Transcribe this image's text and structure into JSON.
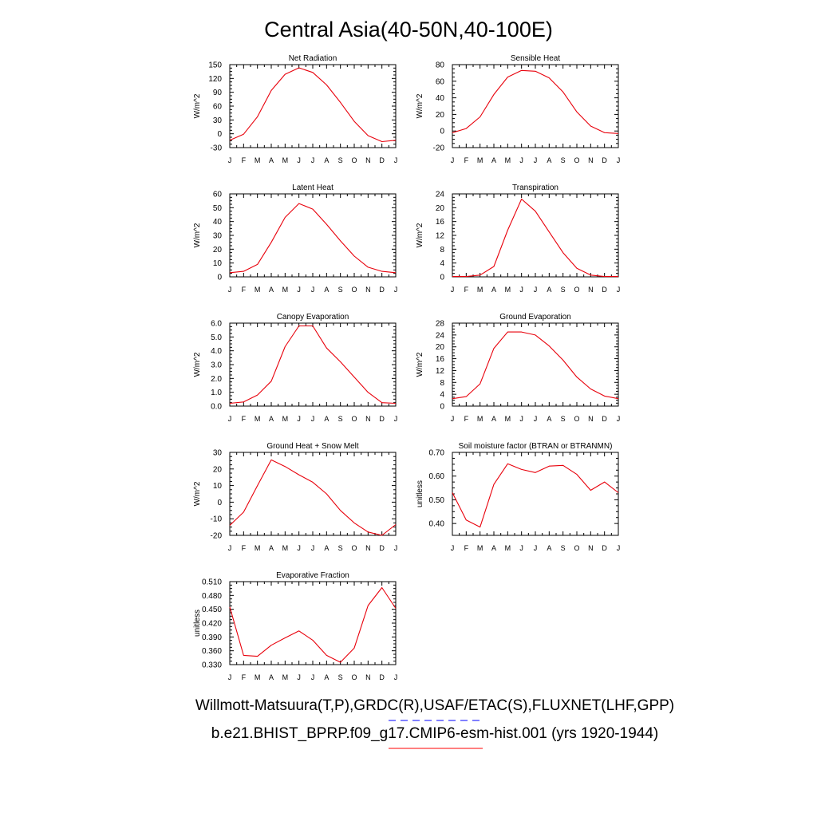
{
  "title": "Central Asia(40-50N,40-100E)",
  "footer": {
    "line1": "Willmott-Matsuura(T,P),GRDC(R),USAF/ETAC(S),FLUXNET(LHF,GPP)",
    "line2": "b.e21.BHIST_BPRP.f09_g17.CMIP6-esm-hist.001 (yrs 1920-1944)",
    "line1_key": {
      "color": "#0000ff",
      "style": "dashed"
    },
    "line2_key": {
      "color": "#ff0000",
      "style": "solid"
    }
  },
  "months": [
    "J",
    "F",
    "M",
    "A",
    "M",
    "J",
    "J",
    "A",
    "S",
    "O",
    "N",
    "D",
    "J"
  ],
  "chart_data": [
    {
      "type": "line",
      "title": "Net Radiation",
      "ylabel": "W/m^2",
      "ylim": [
        -30,
        150
      ],
      "yticks": [
        "-30",
        "0",
        "30",
        "60",
        "90",
        "120",
        "150"
      ],
      "ytick_values": [
        -30,
        0,
        30,
        60,
        90,
        120,
        150
      ],
      "x": [
        "J",
        "F",
        "M",
        "A",
        "M",
        "J",
        "J",
        "A",
        "S",
        "O",
        "N",
        "D",
        "J"
      ],
      "series": [
        {
          "color": "#e8000b",
          "values": [
            -14,
            -1,
            37,
            94,
            129,
            143,
            133,
            106,
            68,
            27,
            -4,
            -17,
            -14
          ]
        }
      ]
    },
    {
      "type": "line",
      "title": "Sensible Heat",
      "ylabel": "W/m^2",
      "ylim": [
        -20,
        80
      ],
      "yticks": [
        "-20",
        "0",
        "20",
        "40",
        "60",
        "80"
      ],
      "ytick_values": [
        -20,
        0,
        20,
        40,
        60,
        80
      ],
      "x": [
        "J",
        "F",
        "M",
        "A",
        "M",
        "J",
        "J",
        "A",
        "S",
        "O",
        "N",
        "D",
        "J"
      ],
      "series": [
        {
          "color": "#e8000b",
          "values": [
            -2,
            3,
            17,
            44,
            65,
            73,
            72,
            64,
            47,
            23,
            6,
            -2,
            -3
          ]
        }
      ]
    },
    {
      "type": "line",
      "title": "Latent Heat",
      "ylabel": "W/m^2",
      "ylim": [
        0,
        60
      ],
      "yticks": [
        "0",
        "10",
        "20",
        "30",
        "40",
        "50",
        "60"
      ],
      "ytick_values": [
        0,
        10,
        20,
        30,
        40,
        50,
        60
      ],
      "x": [
        "J",
        "F",
        "M",
        "A",
        "M",
        "J",
        "J",
        "A",
        "S",
        "O",
        "N",
        "D",
        "J"
      ],
      "series": [
        {
          "color": "#e8000b",
          "values": [
            3,
            4,
            9,
            25,
            43,
            53,
            49,
            38,
            26,
            15,
            7,
            4,
            3
          ]
        }
      ]
    },
    {
      "type": "line",
      "title": "Transpiration",
      "ylabel": "W/m^2",
      "ylim": [
        0,
        24
      ],
      "yticks": [
        "0",
        "4",
        "8",
        "12",
        "16",
        "20",
        "24"
      ],
      "ytick_values": [
        0,
        4,
        8,
        12,
        16,
        20,
        24
      ],
      "x": [
        "J",
        "F",
        "M",
        "A",
        "M",
        "J",
        "J",
        "A",
        "S",
        "O",
        "N",
        "D",
        "J"
      ],
      "series": [
        {
          "color": "#e8000b",
          "values": [
            0.1,
            0.1,
            0.5,
            3,
            13.5,
            22.5,
            19,
            13,
            7,
            2.5,
            0.5,
            0.1,
            0.1
          ]
        }
      ]
    },
    {
      "type": "line",
      "title": "Canopy Evaporation",
      "ylabel": "W/m^2",
      "ylim": [
        0,
        6
      ],
      "yticks": [
        "0.0",
        "1.0",
        "2.0",
        "3.0",
        "4.0",
        "5.0",
        "6.0"
      ],
      "ytick_values": [
        0,
        1,
        2,
        3,
        4,
        5,
        6
      ],
      "x": [
        "J",
        "F",
        "M",
        "A",
        "M",
        "J",
        "J",
        "A",
        "S",
        "O",
        "N",
        "D",
        "J"
      ],
      "series": [
        {
          "color": "#e8000b",
          "values": [
            0.2,
            0.3,
            0.8,
            1.8,
            4.3,
            5.8,
            5.8,
            4.2,
            3.2,
            2.1,
            1.0,
            0.25,
            0.2
          ]
        }
      ]
    },
    {
      "type": "line",
      "title": "Ground Evaporation",
      "ylabel": "W/m^2",
      "ylim": [
        0,
        28
      ],
      "yticks": [
        "0",
        "4",
        "8",
        "12",
        "16",
        "20",
        "24",
        "28"
      ],
      "ytick_values": [
        0,
        4,
        8,
        12,
        16,
        20,
        24,
        28
      ],
      "x": [
        "J",
        "F",
        "M",
        "A",
        "M",
        "J",
        "J",
        "A",
        "S",
        "O",
        "N",
        "D",
        "J"
      ],
      "series": [
        {
          "color": "#e8000b",
          "values": [
            2.5,
            3.2,
            7.5,
            19.5,
            25,
            25,
            24,
            20.3,
            15.5,
            9.8,
            5.8,
            3.4,
            2.5
          ]
        }
      ]
    },
    {
      "type": "line",
      "title": "Ground Heat + Snow Melt",
      "ylabel": "W/m^2",
      "ylim": [
        -20,
        30
      ],
      "yticks": [
        "-20",
        "-10",
        "0",
        "10",
        "20",
        "30"
      ],
      "ytick_values": [
        -20,
        -10,
        0,
        10,
        20,
        30
      ],
      "x": [
        "J",
        "F",
        "M",
        "A",
        "M",
        "J",
        "J",
        "A",
        "S",
        "O",
        "N",
        "D",
        "J"
      ],
      "series": [
        {
          "color": "#e8000b",
          "values": [
            -14,
            -6,
            10,
            25.5,
            21.5,
            16.5,
            12,
            5,
            -5,
            -12.5,
            -18,
            -20,
            -13.5
          ]
        }
      ]
    },
    {
      "type": "line",
      "title": "Soil moisture factor (BTRAN or BTRANMN)",
      "ylabel": "unitless",
      "ylim": [
        0.35,
        0.7
      ],
      "yticks": [
        "0.40",
        "0.50",
        "0.60",
        "0.70"
      ],
      "ytick_values": [
        0.4,
        0.5,
        0.6,
        0.7
      ],
      "x": [
        "J",
        "F",
        "M",
        "A",
        "M",
        "J",
        "J",
        "A",
        "S",
        "O",
        "N",
        "D",
        "J"
      ],
      "series": [
        {
          "color": "#e8000b",
          "values": [
            0.53,
            0.415,
            0.385,
            0.565,
            0.652,
            0.628,
            0.615,
            0.642,
            0.645,
            0.607,
            0.54,
            0.575,
            0.53
          ]
        }
      ]
    },
    {
      "type": "line",
      "title": "Evaporative Fraction",
      "ylabel": "unitless",
      "ylim": [
        0.33,
        0.51
      ],
      "yticks": [
        "0.330",
        "0.360",
        "0.390",
        "0.420",
        "0.450",
        "0.480",
        "0.510"
      ],
      "ytick_values": [
        0.33,
        0.36,
        0.39,
        0.42,
        0.45,
        0.48,
        0.51
      ],
      "x": [
        "J",
        "F",
        "M",
        "A",
        "M",
        "J",
        "J",
        "A",
        "S",
        "O",
        "N",
        "D",
        "J"
      ],
      "series": [
        {
          "color": "#e8000b",
          "values": [
            0.455,
            0.35,
            0.348,
            0.372,
            0.388,
            0.403,
            0.383,
            0.35,
            0.335,
            0.366,
            0.458,
            0.497,
            0.452
          ]
        }
      ]
    }
  ]
}
